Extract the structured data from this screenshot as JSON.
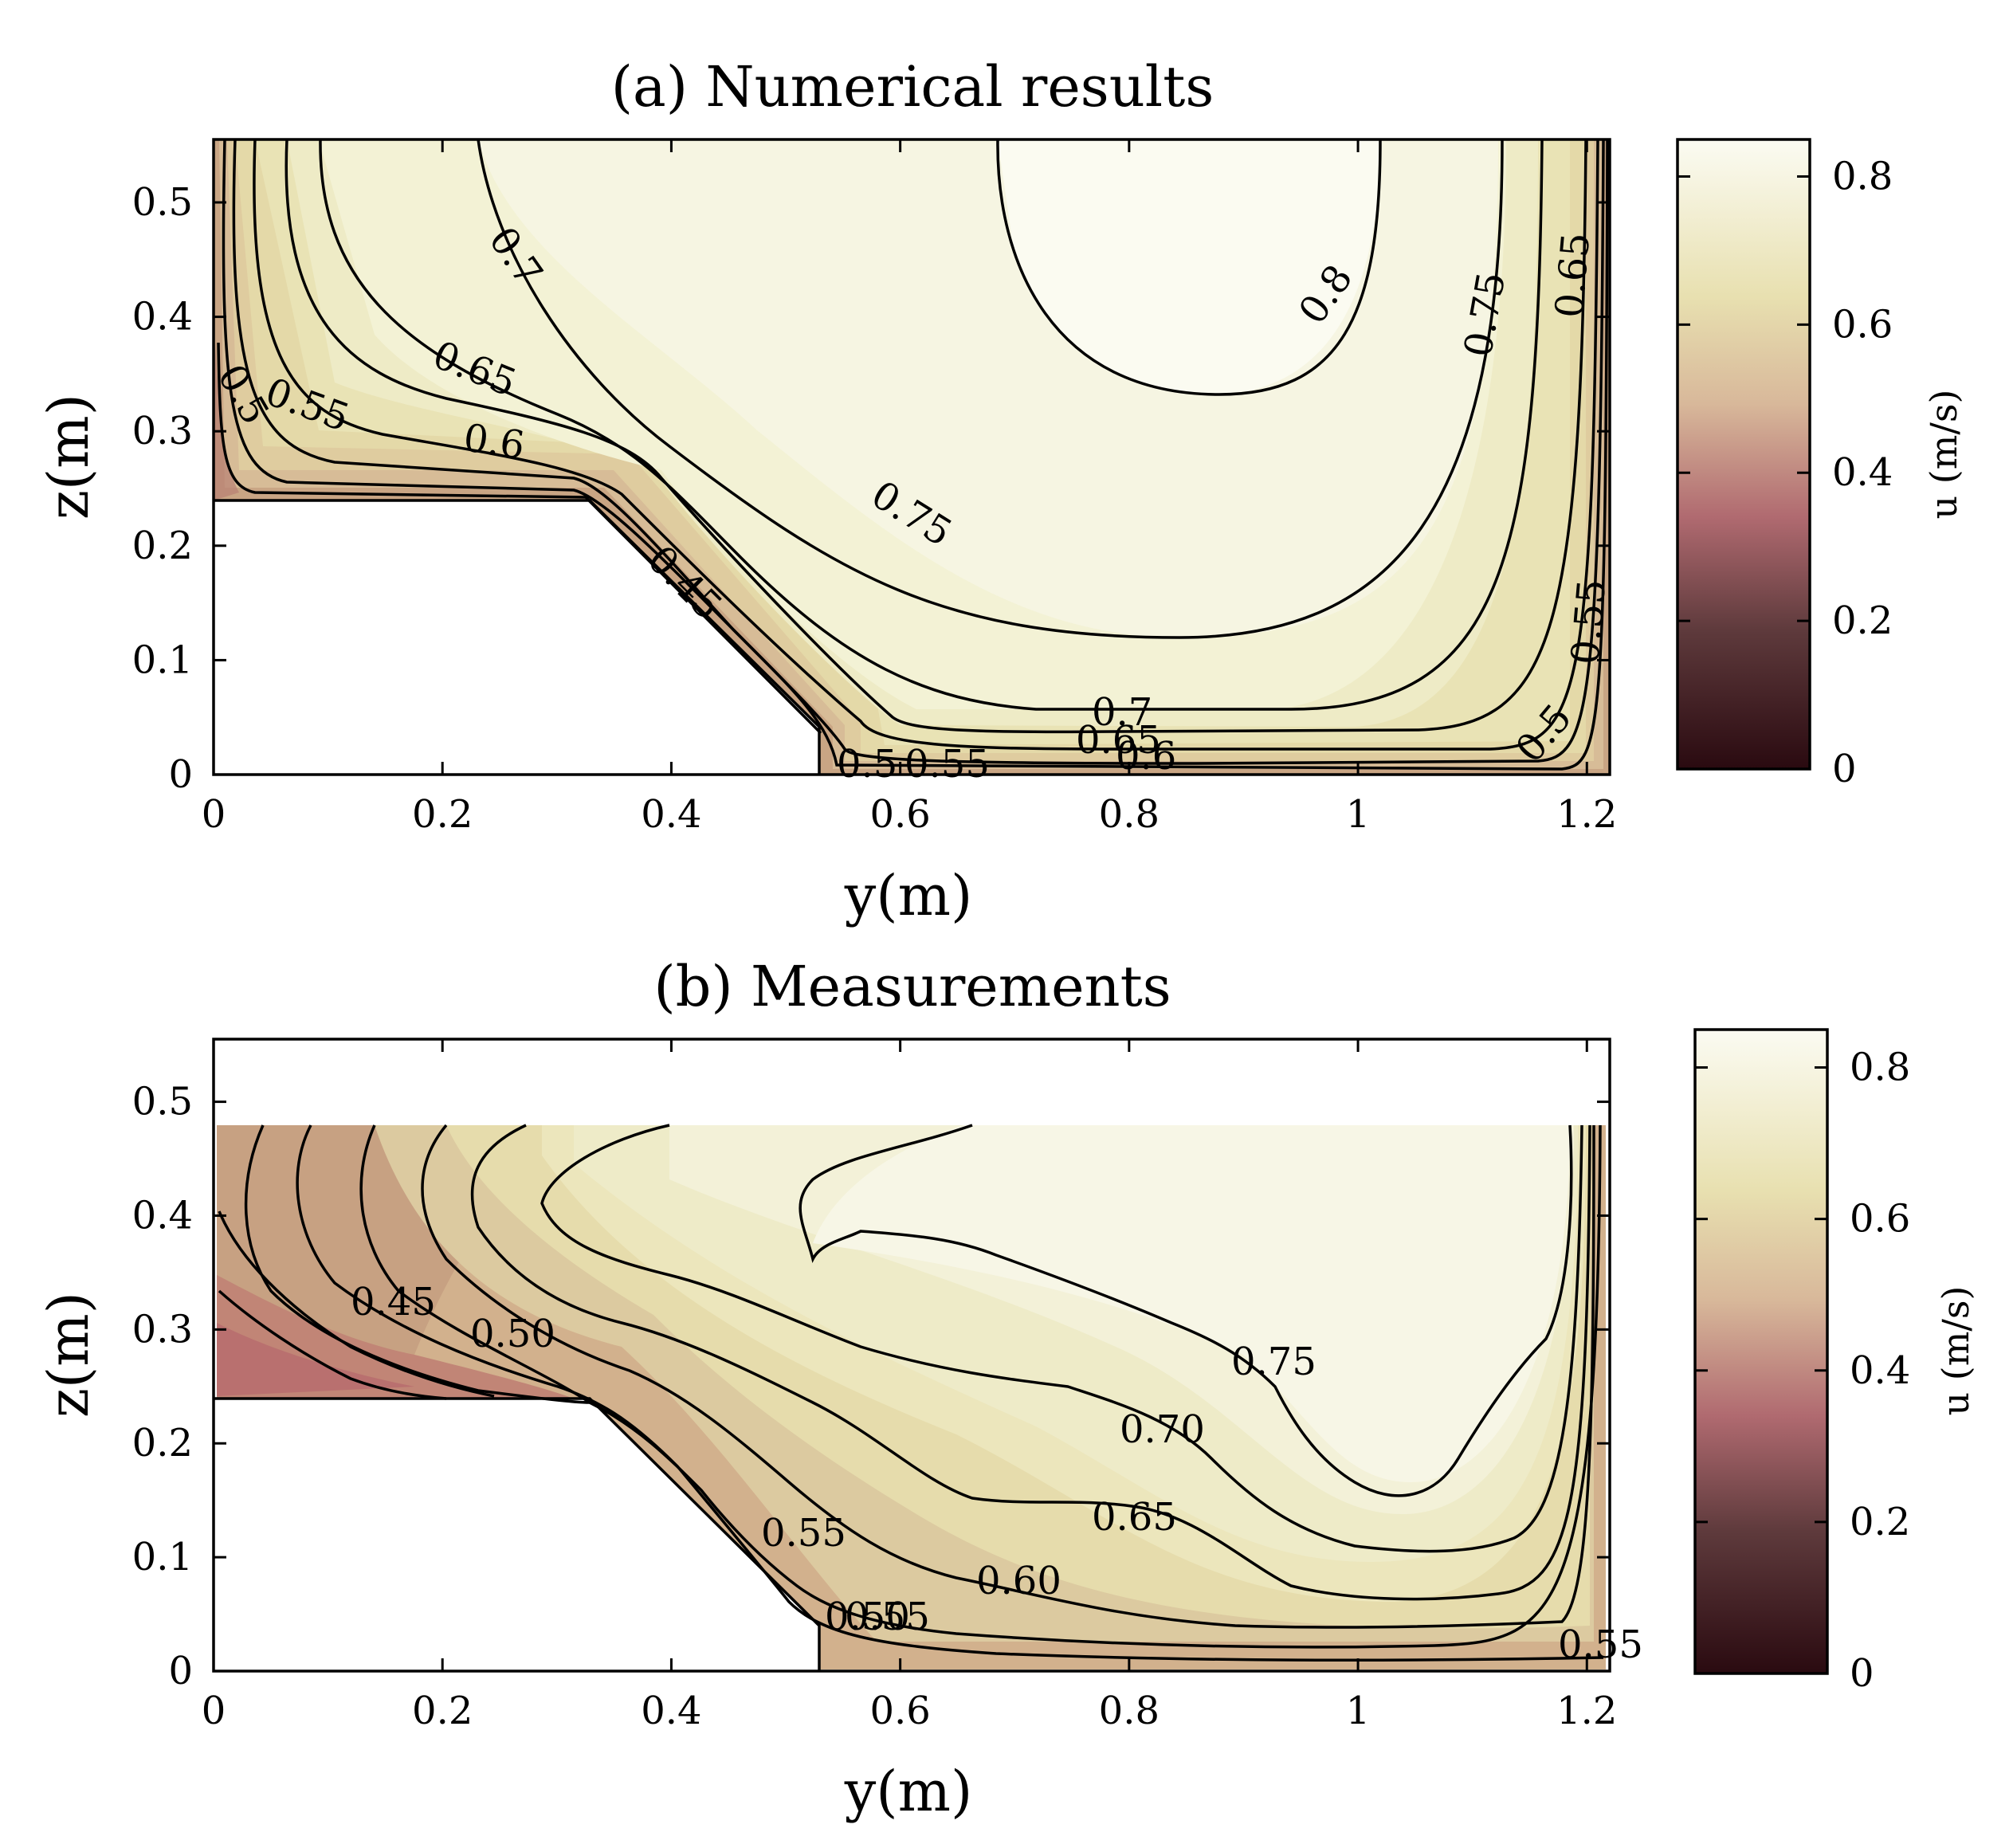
{
  "colorbar": {
    "label": "u (m/s)",
    "ticks": [
      "0",
      "0.2",
      "0.4",
      "0.6",
      "0.8"
    ],
    "range": [
      0,
      0.85
    ],
    "colors": [
      "#2a0a10",
      "#5e3a3c",
      "#b06a70",
      "#d8b89a",
      "#e8e0b0",
      "#fbfbf2"
    ]
  },
  "chart_data": [
    {
      "type": "contour",
      "title": "(a) Numerical results",
      "xlabel": "y(m)",
      "ylabel": "z(m)",
      "xlim": [
        0,
        1.22
      ],
      "ylim": [
        0,
        0.555
      ],
      "xticks": [
        "0",
        "0.2",
        "0.4",
        "0.6",
        "0.8",
        "1",
        "1.2"
      ],
      "yticks": [
        "0",
        "0.1",
        "0.2",
        "0.3",
        "0.4",
        "0.5"
      ],
      "channel_boundary": [
        [
          0,
          0.24
        ],
        [
          0.33,
          0.24
        ],
        [
          0.53,
          0.035
        ],
        [
          0.53,
          0
        ]
      ],
      "contour_labels": [
        "0.8",
        "0.75",
        "0.75",
        "0.7",
        "0.7",
        "0.65",
        "0.65",
        "0.65",
        "0.6",
        "0.6",
        "0.55",
        "0.55",
        "0.55",
        "0.5",
        "0.5",
        "0.5",
        "0.45",
        "0.5",
        "0.55"
      ],
      "colorbar_label": "u (m/s)"
    },
    {
      "type": "contour",
      "title": "(b) Measurements",
      "xlabel": "y(m)",
      "ylabel": "z(m)",
      "xlim": [
        0,
        1.22
      ],
      "ylim": [
        0,
        0.555
      ],
      "xticks": [
        "0",
        "0.2",
        "0.4",
        "0.6",
        "0.8",
        "1",
        "1.2"
      ],
      "yticks": [
        "0",
        "0.1",
        "0.2",
        "0.3",
        "0.4",
        "0.5"
      ],
      "measured_top": 0.475,
      "contour_labels": [
        "0.75",
        "0.70",
        "0.65",
        "0.60",
        "0.55",
        "0.55",
        "0.45",
        "0.50",
        "0.50",
        "0.55"
      ],
      "colorbar_label": "u (m/s)"
    }
  ]
}
